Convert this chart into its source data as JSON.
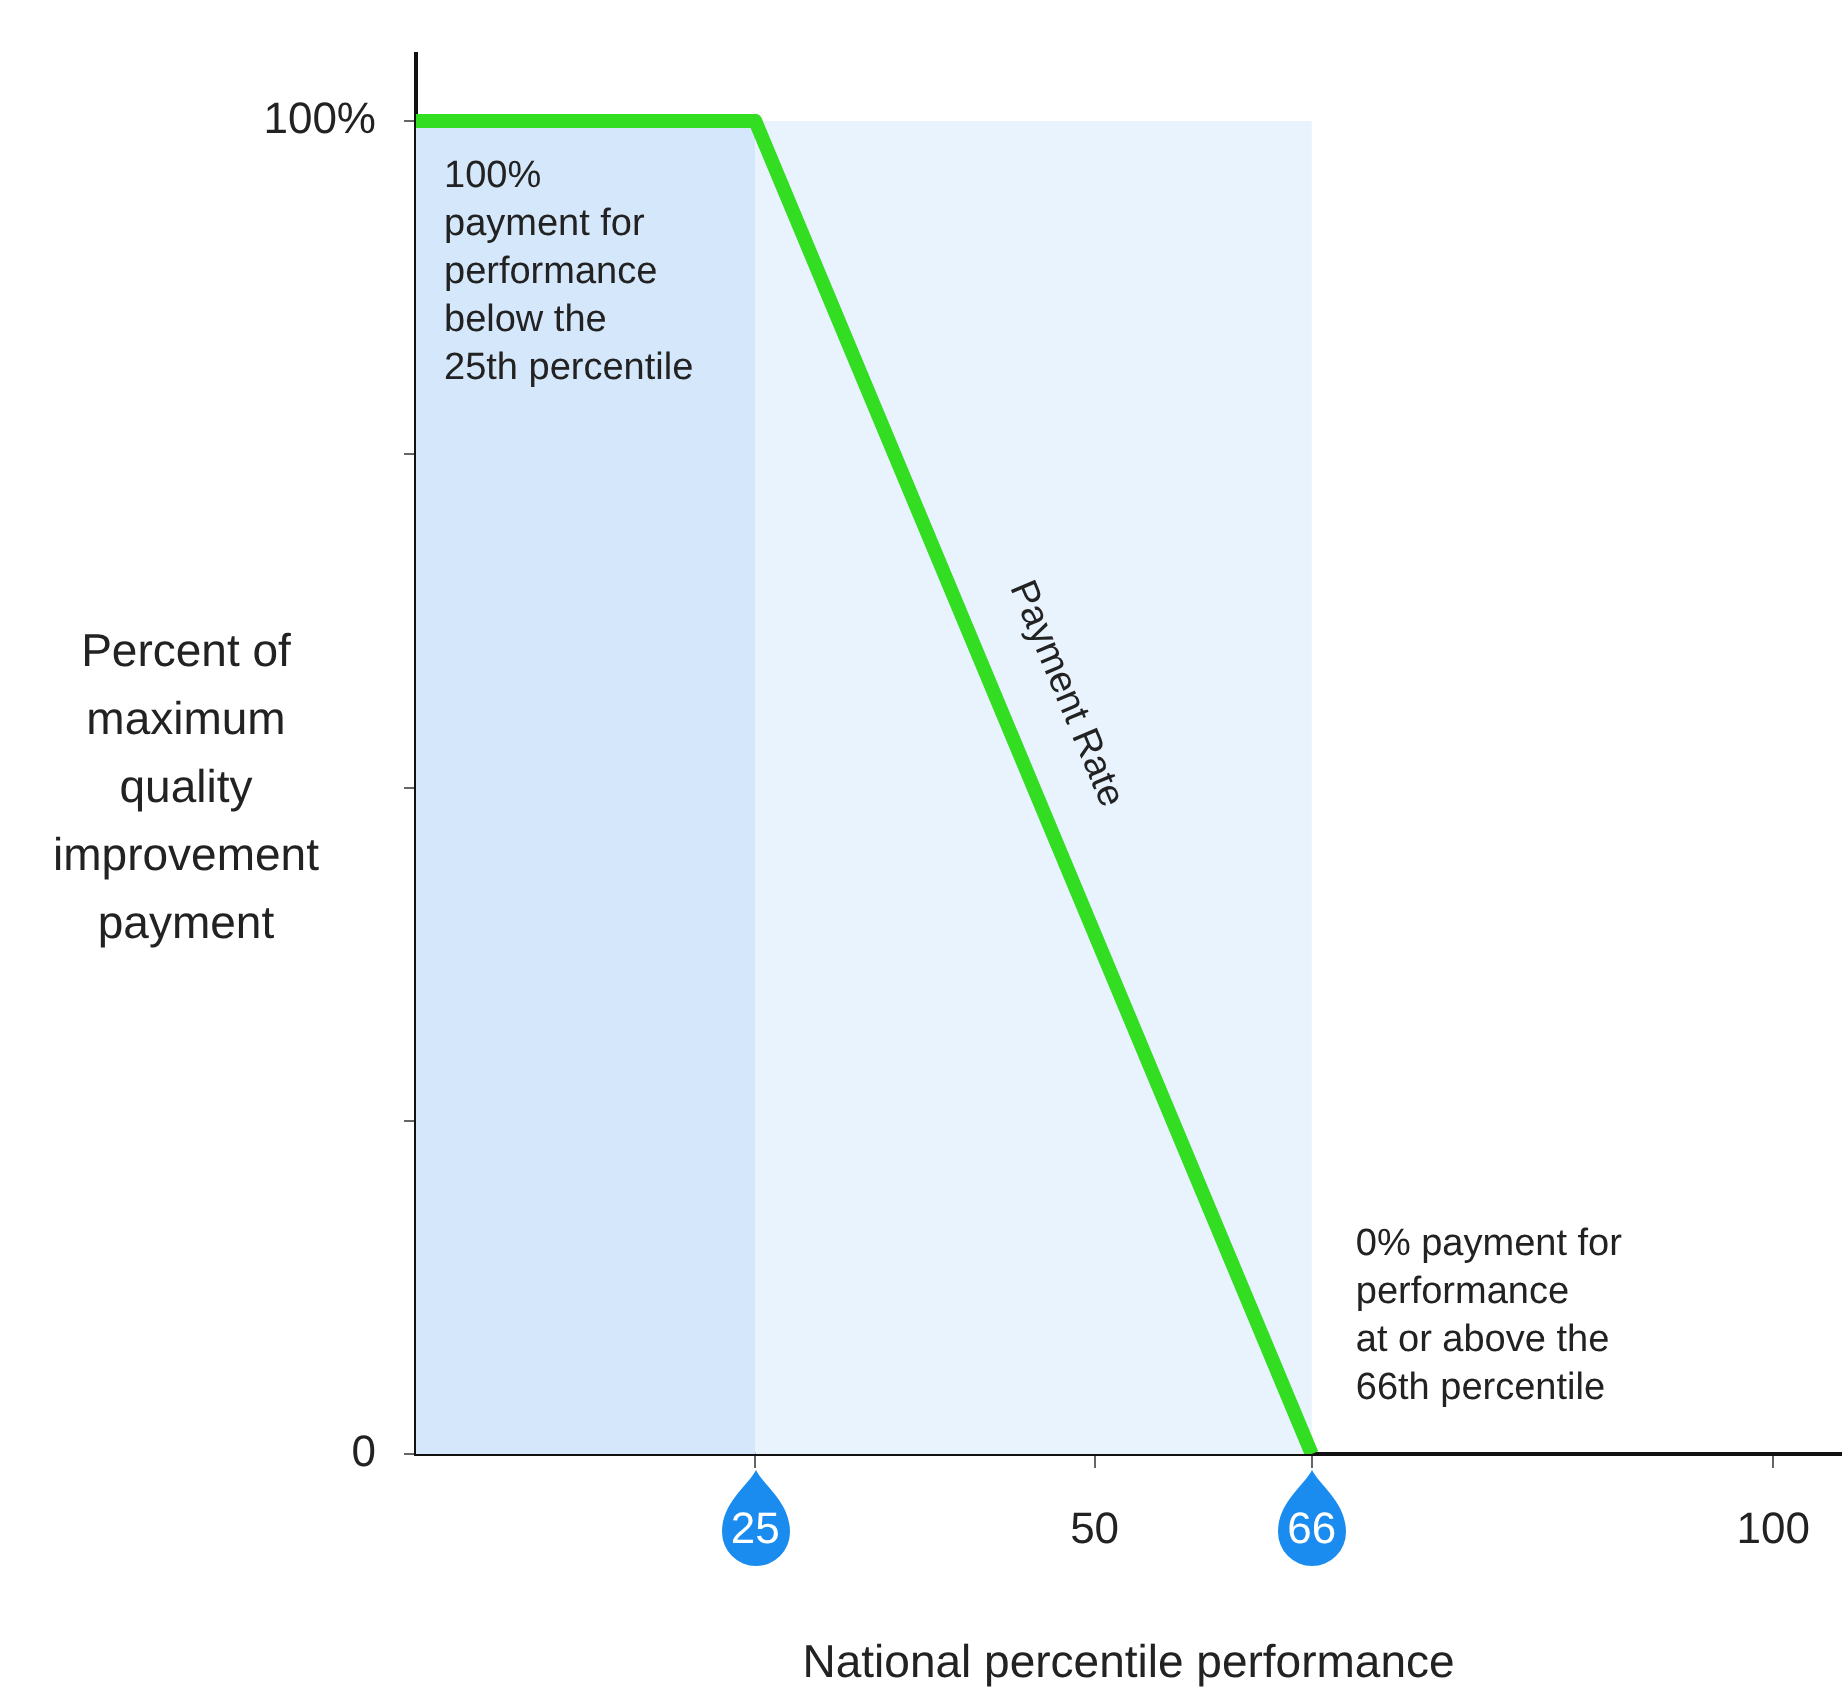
{
  "chart_data": {
    "type": "line",
    "xlabel": "National percentile performance",
    "ylabel": "Percent of maximum quality improvement payment",
    "x": [
      0,
      25,
      66
    ],
    "series": [
      {
        "name": "Payment Rate",
        "color": "#33dd22",
        "values": [
          100,
          100,
          0
        ]
      }
    ],
    "xlim": [
      0,
      105
    ],
    "ylim": [
      0,
      105
    ],
    "xticks": [
      25,
      50,
      66,
      100
    ],
    "yticks": [
      0,
      {
        "value": 25,
        "label": null
      },
      {
        "value": 50,
        "label": null
      },
      {
        "value": 75,
        "label": null
      },
      {
        "value": 100,
        "label": "100%"
      }
    ],
    "bands": [
      {
        "axis": "x",
        "from": 0,
        "to": 25,
        "color": "#d5e7fa"
      },
      {
        "axis": "x",
        "from": 25,
        "to": 66,
        "color": "#e8f3fd"
      }
    ],
    "annotations": [
      "100%\npayment for\nperformance\nbelow the\n25th percentile",
      "0% payment for\nperformance\nat or above the\n66th percentile"
    ],
    "grid": false,
    "legend": false
  }
}
